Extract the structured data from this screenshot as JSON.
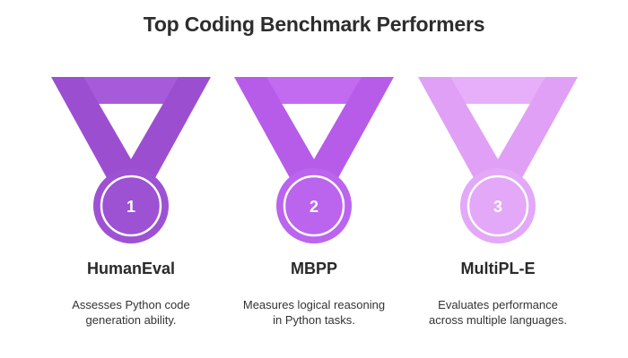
{
  "title": "Top Coding Benchmark Performers",
  "medals": [
    {
      "rank": "1",
      "name": "HumanEval",
      "description": "Assesses Python code generation ability.",
      "colors": {
        "ribbon_dark": "#9b4fd0",
        "ribbon_light": "#a75ad9",
        "disc": "#9c52d3",
        "ring": "#ffffff"
      }
    },
    {
      "rank": "2",
      "name": "MBPP",
      "description": "Measures logical reasoning in Python tasks.",
      "colors": {
        "ribbon_dark": "#b65ce9",
        "ribbon_light": "#c26af0",
        "disc": "#bb64ee",
        "ring": "#ffffff"
      }
    },
    {
      "rank": "3",
      "name": "MultiPL-E",
      "description": "Evaluates performance across multiple languages.",
      "colors": {
        "ribbon_dark": "#dfa0f6",
        "ribbon_light": "#e7aef9",
        "disc": "#e3a8f8",
        "ring": "#ffffff"
      }
    }
  ]
}
